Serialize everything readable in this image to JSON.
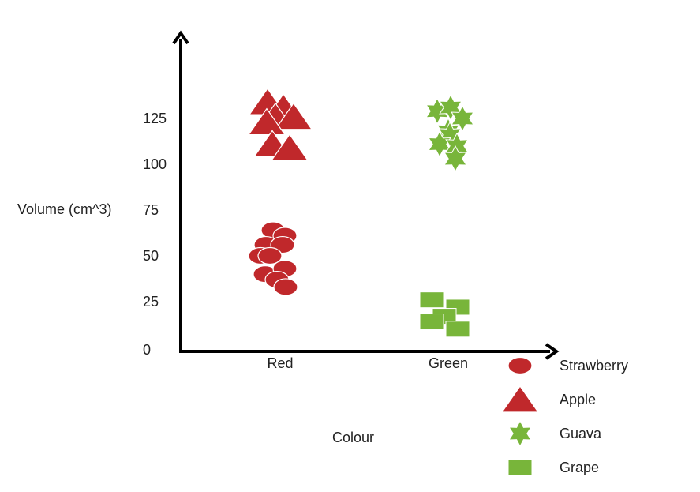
{
  "chart_data": {
    "type": "scatter",
    "title": "",
    "xlabel": "Colour",
    "ylabel": "Volume (cm^3)",
    "categories": [
      "Red",
      "Green"
    ],
    "yticks": [
      0,
      25,
      50,
      75,
      100,
      125
    ],
    "ylim": [
      0,
      175
    ],
    "grid": false,
    "legend_position": "bottom-right",
    "series": [
      {
        "name": "Strawberry",
        "marker": "circle",
        "color": "#c0282b",
        "category": "Red",
        "points": [
          {
            "x": -0.09,
            "y": 64
          },
          {
            "x": 0.06,
            "y": 61
          },
          {
            "x": -0.18,
            "y": 56
          },
          {
            "x": 0.03,
            "y": 56
          },
          {
            "x": -0.25,
            "y": 50
          },
          {
            "x": -0.13,
            "y": 50
          },
          {
            "x": -0.19,
            "y": 40
          },
          {
            "x": 0.06,
            "y": 43
          },
          {
            "x": -0.04,
            "y": 37
          },
          {
            "x": 0.07,
            "y": 33
          }
        ]
      },
      {
        "name": "Apple",
        "marker": "triangle",
        "color": "#c0282b",
        "category": "Red",
        "points": [
          {
            "x": -0.16,
            "y": 134
          },
          {
            "x": 0.04,
            "y": 131
          },
          {
            "x": -0.06,
            "y": 126
          },
          {
            "x": 0.17,
            "y": 126
          },
          {
            "x": -0.17,
            "y": 123
          },
          {
            "x": -0.1,
            "y": 111
          },
          {
            "x": 0.12,
            "y": 109
          }
        ]
      },
      {
        "name": "Guava",
        "marker": "star",
        "color": "#78b53a",
        "category": "Green",
        "points": [
          {
            "x": -0.14,
            "y": 129
          },
          {
            "x": 0.03,
            "y": 131
          },
          {
            "x": 0.18,
            "y": 125
          },
          {
            "x": 0.0,
            "y": 118
          },
          {
            "x": 0.02,
            "y": 116
          },
          {
            "x": -0.11,
            "y": 111
          },
          {
            "x": 0.11,
            "y": 110
          },
          {
            "x": 0.09,
            "y": 103
          }
        ]
      },
      {
        "name": "Grape",
        "marker": "square",
        "color": "#78b53a",
        "category": "Green",
        "points": [
          {
            "x": -0.21,
            "y": 26
          },
          {
            "x": 0.12,
            "y": 22
          },
          {
            "x": -0.05,
            "y": 17
          },
          {
            "x": -0.21,
            "y": 14
          },
          {
            "x": 0.12,
            "y": 10
          }
        ]
      }
    ]
  }
}
